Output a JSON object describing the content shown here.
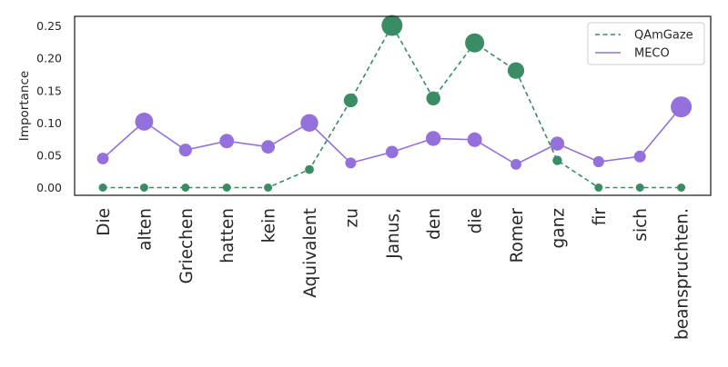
{
  "chart_data": {
    "type": "line",
    "title": "",
    "xlabel": "",
    "ylabel": "Importance",
    "categories": [
      "Die",
      "alten",
      "Griechen",
      "hatten",
      "kein",
      "Aquivalent",
      "zu",
      "Janus,",
      "den",
      "die",
      "Romer",
      "ganz",
      "fir",
      "sich",
      "beanspruchten."
    ],
    "ylim": [
      -0.012,
      0.265
    ],
    "yticks": [
      0.0,
      0.05,
      0.1,
      0.15,
      0.2,
      0.25
    ],
    "ytick_labels": [
      "0.00",
      "0.05",
      "0.10",
      "0.15",
      "0.20",
      "0.25"
    ],
    "grid": false,
    "legend_position": "top-right",
    "series": [
      {
        "name": "QAmGaze",
        "color": "#3a8c64",
        "linestyle": "dashed",
        "values": [
          0.0,
          0.0,
          0.0,
          0.0,
          0.0,
          0.028,
          0.135,
          0.251,
          0.138,
          0.224,
          0.181,
          0.042,
          0.0,
          0.0,
          0.0
        ]
      },
      {
        "name": "MECO",
        "color": "#9370db",
        "linestyle": "solid",
        "values": [
          0.045,
          0.102,
          0.058,
          0.072,
          0.063,
          0.1,
          0.038,
          0.055,
          0.076,
          0.074,
          0.036,
          0.068,
          0.04,
          0.048,
          0.125
        ]
      }
    ]
  }
}
